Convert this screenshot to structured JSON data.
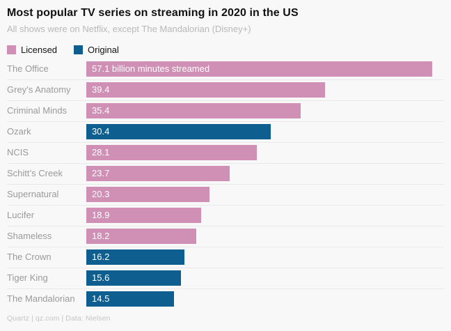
{
  "title": "Most popular TV series on streaming in 2020 in the US",
  "subtitle": "All shows were on Netflix, except The Mandalorian (Disney+)",
  "footer": "Quartz | qz.com | Data: Nielsen",
  "colors": {
    "licensed": "#d08fb4",
    "original": "#0f5e90",
    "background": "#f8f8f8",
    "row_separator": "#e9e9e9",
    "label_gray": "#9a9a9a",
    "subtitle_gray": "#b8b8b8"
  },
  "legend": {
    "items": [
      {
        "label": "Licensed",
        "color_key": "licensed"
      },
      {
        "label": "Original",
        "color_key": "original"
      }
    ]
  },
  "chart_data": {
    "type": "bar",
    "orientation": "horizontal",
    "title": "Most popular TV series on streaming in 2020 in the US",
    "subtitle": "All shows were on Netflix, except The Mandalorian (Disney+)",
    "xlabel": "",
    "ylabel": "",
    "unit": "billion minutes streamed",
    "xlim": [
      0,
      57.1
    ],
    "grid": false,
    "legend_position": "top-left",
    "legend_entries": [
      "Licensed",
      "Original"
    ],
    "categories": [
      "The Office",
      "Grey’s Anatomy",
      "Criminal Minds",
      "Ozark",
      "NCIS",
      "Schitt’s Creek",
      "Supernatural",
      "Lucifer",
      "Shameless",
      "The Crown",
      "Tiger King",
      "The Mandalorian"
    ],
    "values": [
      57.1,
      39.4,
      35.4,
      30.4,
      28.1,
      23.7,
      20.3,
      18.9,
      18.2,
      16.2,
      15.6,
      14.5
    ],
    "bars": [
      {
        "label": "The Office",
        "value": 57.1,
        "group": "Licensed",
        "color_key": "licensed",
        "value_label": "57.1 billion minutes streamed"
      },
      {
        "label": "Grey’s Anatomy",
        "value": 39.4,
        "group": "Licensed",
        "color_key": "licensed",
        "value_label": "39.4"
      },
      {
        "label": "Criminal Minds",
        "value": 35.4,
        "group": "Licensed",
        "color_key": "licensed",
        "value_label": "35.4"
      },
      {
        "label": "Ozark",
        "value": 30.4,
        "group": "Original",
        "color_key": "original",
        "value_label": "30.4"
      },
      {
        "label": "NCIS",
        "value": 28.1,
        "group": "Licensed",
        "color_key": "licensed",
        "value_label": "28.1"
      },
      {
        "label": "Schitt’s Creek",
        "value": 23.7,
        "group": "Licensed",
        "color_key": "licensed",
        "value_label": "23.7"
      },
      {
        "label": "Supernatural",
        "value": 20.3,
        "group": "Licensed",
        "color_key": "licensed",
        "value_label": "20.3"
      },
      {
        "label": "Lucifer",
        "value": 18.9,
        "group": "Licensed",
        "color_key": "licensed",
        "value_label": "18.9"
      },
      {
        "label": "Shameless",
        "value": 18.2,
        "group": "Licensed",
        "color_key": "licensed",
        "value_label": "18.2"
      },
      {
        "label": "The Crown",
        "value": 16.2,
        "group": "Original",
        "color_key": "original",
        "value_label": "16.2"
      },
      {
        "label": "Tiger King",
        "value": 15.6,
        "group": "Original",
        "color_key": "original",
        "value_label": "15.6"
      },
      {
        "label": "The Mandalorian",
        "value": 14.5,
        "group": "Original",
        "color_key": "original",
        "value_label": "14.5"
      }
    ]
  }
}
